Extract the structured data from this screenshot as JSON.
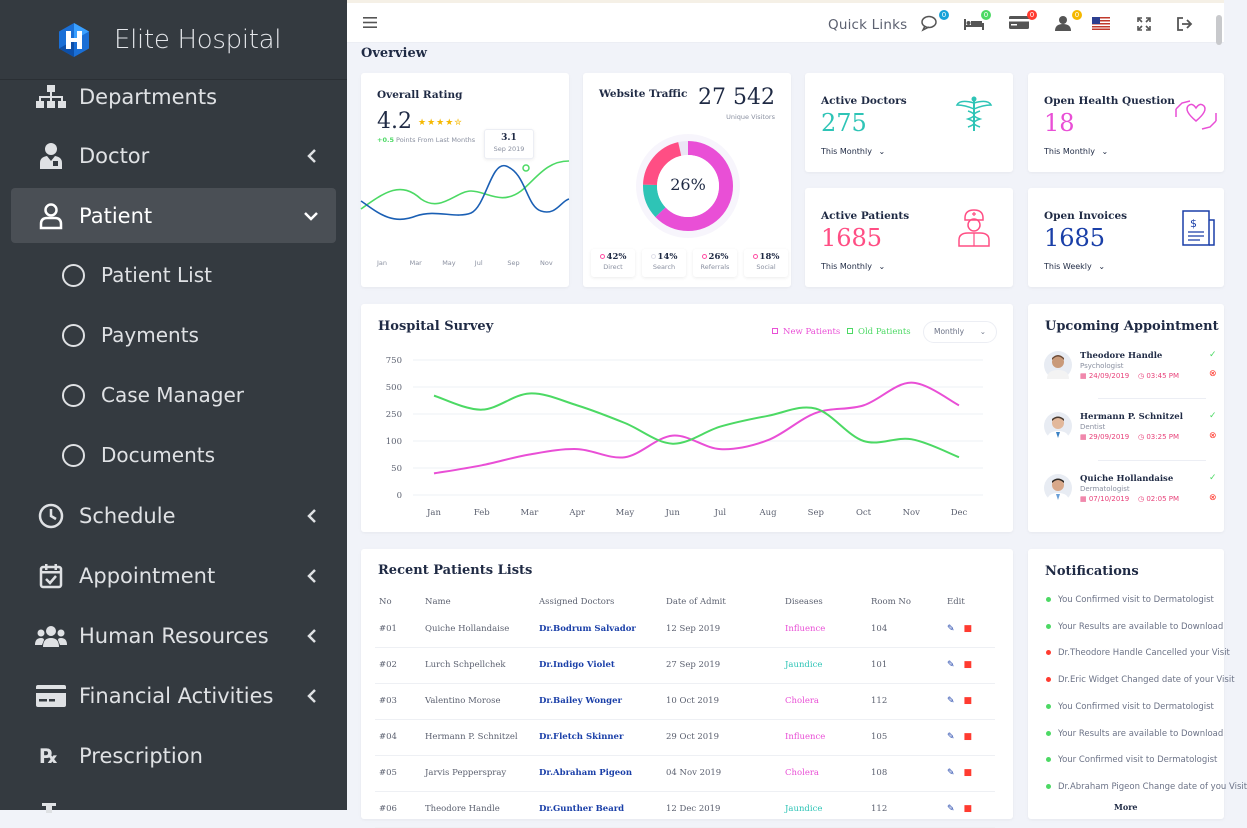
{
  "brand": {
    "name": "Elite Hospital"
  },
  "sidebar": {
    "items": [
      {
        "label": "Departments"
      },
      {
        "label": "Doctor"
      },
      {
        "label": "Patient"
      },
      {
        "label": "Schedule"
      },
      {
        "label": "Appointment"
      },
      {
        "label": "Human Resources"
      },
      {
        "label": "Financial Activities"
      },
      {
        "label": "Prescription"
      }
    ],
    "patient_sub": [
      {
        "label": "Patient List"
      },
      {
        "label": "Payments"
      },
      {
        "label": "Case Manager"
      },
      {
        "label": "Documents"
      }
    ]
  },
  "topbar": {
    "quick_links": "Quick Links",
    "badges": [
      "0",
      "0",
      "0",
      "0"
    ]
  },
  "overview": {
    "title": "Overview"
  },
  "rating": {
    "title": "Overall Rating",
    "value": "4.2",
    "stars": "★★★★✮",
    "change": "+0.5",
    "change_text": "Points From Last Months",
    "tooltip_value": "3.1",
    "tooltip_date": "Sep 2019",
    "months": [
      "Jan",
      "Mar",
      "May",
      "Jul",
      "Sep",
      "Nov"
    ]
  },
  "traffic": {
    "title": "Website Traffic",
    "value": "27 542",
    "subtitle": "Unique Visitors",
    "center": "26%",
    "sources": [
      {
        "pct": "42%",
        "label": "Direct",
        "color": "#ff4ea3"
      },
      {
        "pct": "14%",
        "label": "Search",
        "color": "#e0e0ea"
      },
      {
        "pct": "26%",
        "label": "Referrals",
        "color": "#ff4ea3"
      },
      {
        "pct": "18%",
        "label": "Social",
        "color": "#ff4ea3"
      }
    ]
  },
  "stats": [
    {
      "title": "Active Doctors",
      "value": "275",
      "period": "This Monthly",
      "color": "#2ec4b6",
      "icon": "caduceus-icon"
    },
    {
      "title": "Open Health Question",
      "value": "18",
      "period": "This Monthly",
      "color": "#e94fd6",
      "icon": "heart-hands-icon"
    },
    {
      "title": "Active Patients",
      "value": "1685",
      "period": "This Monthly",
      "color": "#ff4e84",
      "icon": "nurse-icon"
    },
    {
      "title": "Open Invoices",
      "value": "1685",
      "period": "This Weekly",
      "color": "#1a3fa8",
      "icon": "invoice-icon"
    }
  ],
  "survey": {
    "title": "Hospital Survey",
    "legend_new": "New Patients",
    "legend_old": "Old Patients",
    "period": "Monthly"
  },
  "chart_data": [
    {
      "type": "line",
      "title": "Hospital Survey",
      "categories": [
        "Jan",
        "Feb",
        "Mar",
        "Apr",
        "May",
        "Jun",
        "Jul",
        "Aug",
        "Sep",
        "Oct",
        "Nov",
        "Dec"
      ],
      "yticks": [
        0,
        50,
        100,
        250,
        500,
        750
      ],
      "series": [
        {
          "name": "New Patients",
          "color": "#e94fd6",
          "values": [
            40,
            55,
            75,
            85,
            70,
            130,
            85,
            105,
            260,
            330,
            540,
            330
          ]
        },
        {
          "name": "Old Patients",
          "color": "#4cd964",
          "values": [
            420,
            290,
            440,
            330,
            200,
            95,
            180,
            240,
            300,
            100,
            110,
            70
          ]
        }
      ],
      "legend": "top-right",
      "grid": true
    }
  ],
  "appointments": {
    "title": "Upcoming Appointment",
    "items": [
      {
        "name": "Theodore Handle",
        "role": "Psychologist",
        "date": "24/09/2019",
        "time": "03:45 PM"
      },
      {
        "name": "Hermann P. Schnitzel",
        "role": "Dentist",
        "date": "29/09/2019",
        "time": "03:25 PM"
      },
      {
        "name": "Quiche Hollandaise",
        "role": "Dermatologist",
        "date": "07/10/2019",
        "time": "02:05 PM"
      }
    ]
  },
  "patients": {
    "title": "Recent Patients Lists",
    "headers": [
      "No",
      "Name",
      "Assigned Doctors",
      "Date of Admit",
      "Diseases",
      "Room No",
      "Edit"
    ],
    "rows": [
      {
        "no": "#01",
        "name": "Quiche Hollandaise",
        "doctor": "Dr.Bodrum Salvador",
        "date": "12 Sep 2019",
        "disease": "Influence",
        "dcolor": "#e94fd6",
        "room": "104"
      },
      {
        "no": "#02",
        "name": "Lurch Schpellchek",
        "doctor": "Dr.Indigo Violet",
        "date": "27 Sep 2019",
        "disease": "Jaundice",
        "dcolor": "#2ec4b6",
        "room": "101"
      },
      {
        "no": "#03",
        "name": "Valentino Morose",
        "doctor": "Dr.Bailey Wonger",
        "date": "10 Oct 2019",
        "disease": "Cholera",
        "dcolor": "#e94fd6",
        "room": "112"
      },
      {
        "no": "#04",
        "name": "Hermann P. Schnitzel",
        "doctor": "Dr.Fletch Skinner",
        "date": "29 Oct 2019",
        "disease": "Influence",
        "dcolor": "#e94fd6",
        "room": "105"
      },
      {
        "no": "#05",
        "name": "Jarvis Pepperspray",
        "doctor": "Dr.Abraham Pigeon",
        "date": "04 Nov 2019",
        "disease": "Cholera",
        "dcolor": "#e94fd6",
        "room": "108"
      },
      {
        "no": "#06",
        "name": "Theodore Handle",
        "doctor": "Dr.Gunther Beard",
        "date": "12 Dec 2019",
        "disease": "Jaundice",
        "dcolor": "#2ec4b6",
        "room": "112"
      }
    ]
  },
  "notifications": {
    "title": "Notifications",
    "items": [
      {
        "text": "You Confirmed visit to Dermatologist",
        "color": "#4cd964"
      },
      {
        "text": "Your Results are available to Download",
        "color": "#4cd964"
      },
      {
        "text": "Dr.Theodore Handle Cancelled your Visit",
        "color": "#ff3b30"
      },
      {
        "text": "Dr.Eric Widget Changed date of your Visit",
        "color": "#ff3b30"
      },
      {
        "text": "You Confirmed visit to Dermatologist",
        "color": "#4cd964"
      },
      {
        "text": "Your Results are available to Download",
        "color": "#4cd964"
      },
      {
        "text": "Your Confirmed visit to Dermatologist",
        "color": "#4cd964"
      },
      {
        "text": "Dr.Abraham Pigeon Change date of you Visit",
        "color": "#4cd964"
      }
    ],
    "more": "More"
  }
}
